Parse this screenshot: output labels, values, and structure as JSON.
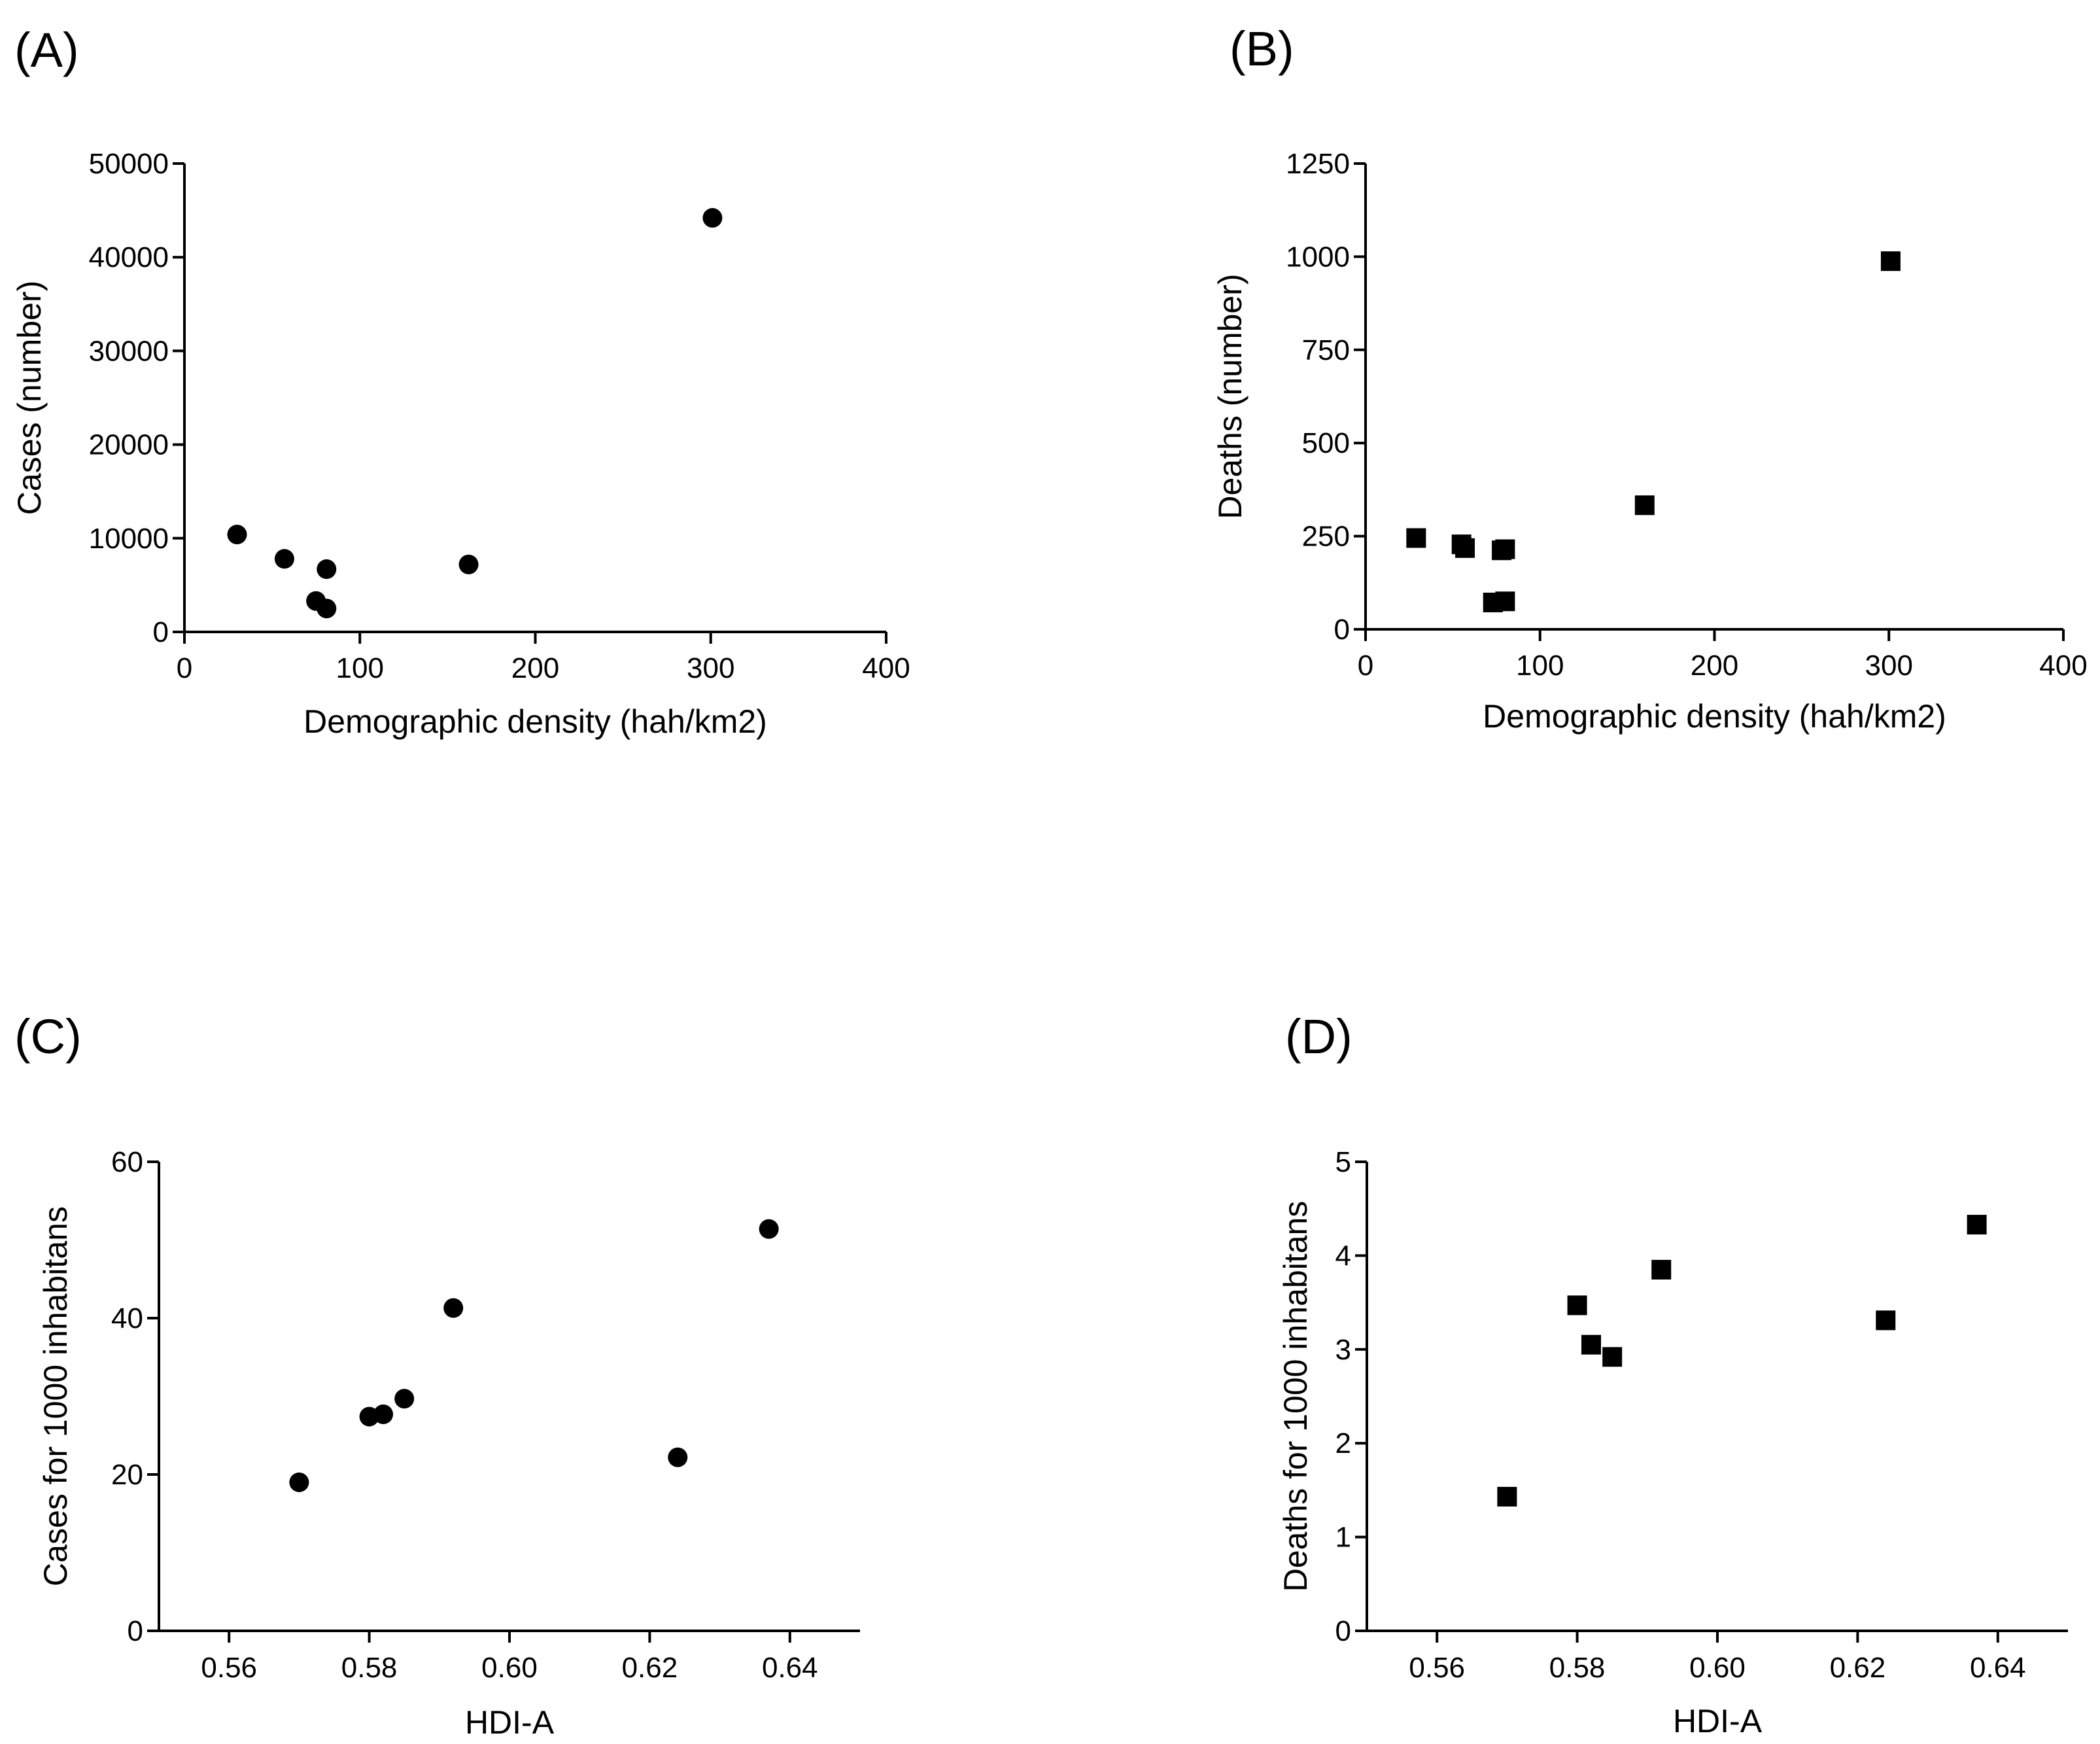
{
  "chart_data": [
    {
      "panel": "(A)",
      "type": "scatter",
      "xlabel": "Demographic density (hah/km2)",
      "ylabel": "Cases (number)",
      "xlim": [
        0,
        400
      ],
      "ylim": [
        0,
        50000
      ],
      "xticks": [
        0,
        100,
        200,
        300,
        400
      ],
      "yticks": [
        0,
        10000,
        20000,
        30000,
        40000,
        50000
      ],
      "xtick_labels": [
        "0",
        "100",
        "200",
        "300",
        "400"
      ],
      "ytick_labels": [
        "0",
        "10000",
        "20000",
        "30000",
        "40000",
        "50000"
      ],
      "marker": "circle",
      "points": [
        {
          "x": 30,
          "y": 10400
        },
        {
          "x": 57,
          "y": 7800
        },
        {
          "x": 81,
          "y": 6700
        },
        {
          "x": 75,
          "y": 3300
        },
        {
          "x": 81,
          "y": 2500
        },
        {
          "x": 162,
          "y": 7200
        },
        {
          "x": 301,
          "y": 44200
        }
      ]
    },
    {
      "panel": "(B)",
      "type": "scatter",
      "xlabel": "Demographic density (hah/km2)",
      "ylabel": "Deaths (number)",
      "xlim": [
        0,
        400
      ],
      "ylim": [
        0,
        1250
      ],
      "xticks": [
        0,
        100,
        200,
        300,
        400
      ],
      "yticks": [
        0,
        250,
        500,
        750,
        1000,
        1250
      ],
      "xtick_labels": [
        "0",
        "100",
        "200",
        "300",
        "400"
      ],
      "ytick_labels": [
        "0",
        "250",
        "500",
        "750",
        "1000",
        "1250"
      ],
      "marker": "square",
      "points": [
        {
          "x": 29,
          "y": 245
        },
        {
          "x": 55,
          "y": 228
        },
        {
          "x": 57,
          "y": 218
        },
        {
          "x": 78,
          "y": 212
        },
        {
          "x": 80,
          "y": 215
        },
        {
          "x": 73,
          "y": 72
        },
        {
          "x": 80,
          "y": 75
        },
        {
          "x": 160,
          "y": 333
        },
        {
          "x": 301,
          "y": 988
        }
      ]
    },
    {
      "panel": "(C)",
      "type": "scatter",
      "xlabel": "HDI-A",
      "ylabel": "Cases for 1000 inhabitans",
      "xlim": [
        0.55,
        0.65
      ],
      "ylim": [
        0,
        60
      ],
      "xticks": [
        0.56,
        0.58,
        0.6,
        0.62,
        0.64
      ],
      "yticks": [
        0,
        20,
        40,
        60
      ],
      "xtick_labels": [
        "0.56",
        "0.58",
        "0.60",
        "0.62",
        "0.64"
      ],
      "ytick_labels": [
        "0",
        "20",
        "40",
        "60"
      ],
      "marker": "circle",
      "points": [
        {
          "x": 0.57,
          "y": 19.0
        },
        {
          "x": 0.58,
          "y": 27.4
        },
        {
          "x": 0.582,
          "y": 27.7
        },
        {
          "x": 0.585,
          "y": 29.7
        },
        {
          "x": 0.592,
          "y": 41.3
        },
        {
          "x": 0.624,
          "y": 22.2
        },
        {
          "x": 0.637,
          "y": 51.4
        }
      ]
    },
    {
      "panel": "(D)",
      "type": "scatter",
      "xlabel": "HDI-A",
      "ylabel": "Deaths for 1000 inhabitans",
      "xlim": [
        0.55,
        0.65
      ],
      "ylim": [
        0,
        5
      ],
      "xticks": [
        0.56,
        0.58,
        0.6,
        0.62,
        0.64
      ],
      "yticks": [
        0,
        1,
        2,
        3,
        4,
        5
      ],
      "xtick_labels": [
        "0.56",
        "0.58",
        "0.60",
        "0.62",
        "0.64"
      ],
      "ytick_labels": [
        "0",
        "1",
        "2",
        "3",
        "4",
        "5"
      ],
      "marker": "square",
      "points": [
        {
          "x": 0.57,
          "y": 1.43
        },
        {
          "x": 0.58,
          "y": 3.47
        },
        {
          "x": 0.582,
          "y": 3.05
        },
        {
          "x": 0.585,
          "y": 2.92
        },
        {
          "x": 0.592,
          "y": 3.85
        },
        {
          "x": 0.624,
          "y": 3.31
        },
        {
          "x": 0.637,
          "y": 4.33
        }
      ]
    }
  ]
}
